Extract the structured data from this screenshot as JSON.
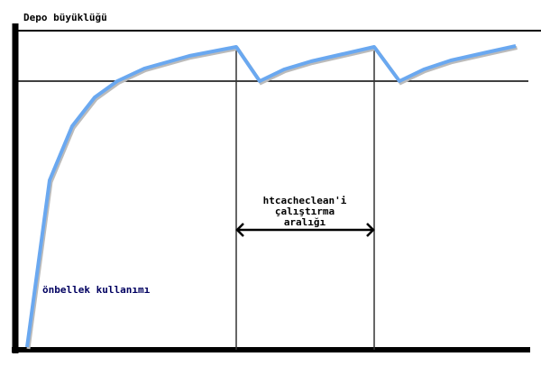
{
  "title": "Depo büyüklüğü",
  "curve_label": "önbellek kullanımı",
  "interval_label": [
    "htcacheclean'i",
    "çalıştırma",
    "aralığı"
  ],
  "colors": {
    "curve": "#6aa8f0",
    "axes": "#000000",
    "curve_label": "#000060"
  }
}
